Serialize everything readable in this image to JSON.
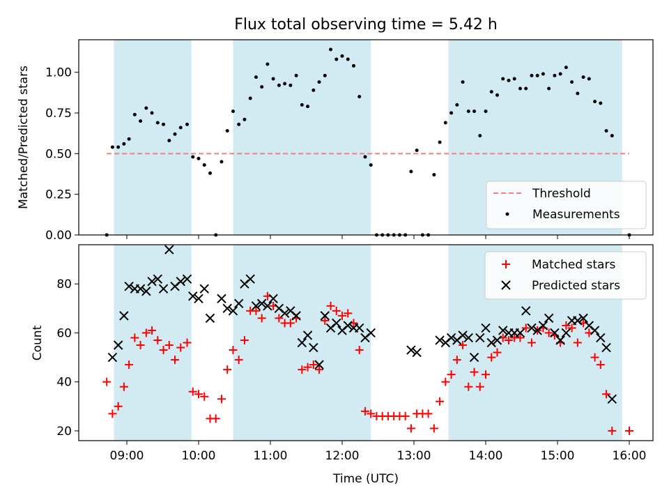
{
  "figure": {
    "title": "Flux total observing time = 5.42 h",
    "xlabel": "Time (UTC)",
    "x_ticks": [
      "09:00",
      "10:00",
      "11:00",
      "12:00",
      "13:00",
      "14:00",
      "15:00",
      "16:00"
    ],
    "x_tick_hours": [
      9,
      10,
      11,
      12,
      13,
      14,
      15,
      16
    ]
  },
  "chart_data": [
    {
      "type": "scatter",
      "panel": "top",
      "ylabel": "Matched/Predicted stars",
      "xlim": [
        8.33,
        16.33
      ],
      "ylim": [
        0,
        1.2
      ],
      "y_ticks": [
        "0.00",
        "0.25",
        "0.50",
        "0.75",
        "1.00"
      ],
      "y_tick_values": [
        0,
        0.25,
        0.5,
        0.75,
        1.0
      ],
      "legend_position": "lower-right",
      "shaded_intervals": [
        [
          8.82,
          9.9
        ],
        [
          10.48,
          12.4
        ],
        [
          13.48,
          15.9
        ]
      ],
      "threshold": {
        "name": "Threshold",
        "value": 0.5,
        "x_range": [
          8.72,
          16.0
        ],
        "color": "#f08080"
      },
      "series": [
        {
          "name": "Measurements",
          "color": "#000000",
          "marker": "dot",
          "points": [
            [
              8.72,
              0.0
            ],
            [
              8.8,
              0.54
            ],
            [
              8.88,
              0.54
            ],
            [
              8.96,
              0.56
            ],
            [
              9.03,
              0.59
            ],
            [
              9.11,
              0.74
            ],
            [
              9.19,
              0.7
            ],
            [
              9.27,
              0.78
            ],
            [
              9.35,
              0.75
            ],
            [
              9.43,
              0.69
            ],
            [
              9.51,
              0.68
            ],
            [
              9.59,
              0.58
            ],
            [
              9.67,
              0.62
            ],
            [
              9.75,
              0.66
            ],
            [
              9.84,
              0.68
            ],
            [
              9.92,
              0.48
            ],
            [
              10.0,
              0.47
            ],
            [
              10.08,
              0.43
            ],
            [
              10.16,
              0.38
            ],
            [
              10.24,
              0.0
            ],
            [
              10.32,
              0.45
            ],
            [
              10.4,
              0.64
            ],
            [
              10.48,
              0.76
            ],
            [
              10.56,
              0.68
            ],
            [
              10.64,
              0.71
            ],
            [
              10.72,
              0.84
            ],
            [
              10.8,
              0.97
            ],
            [
              10.88,
              0.91
            ],
            [
              10.96,
              1.05
            ],
            [
              11.04,
              0.96
            ],
            [
              11.12,
              0.92
            ],
            [
              11.2,
              0.93
            ],
            [
              11.28,
              0.92
            ],
            [
              11.36,
              0.98
            ],
            [
              11.44,
              0.8
            ],
            [
              11.52,
              0.79
            ],
            [
              11.6,
              0.89
            ],
            [
              11.68,
              0.94
            ],
            [
              11.76,
              0.98
            ],
            [
              11.84,
              1.14
            ],
            [
              11.92,
              1.08
            ],
            [
              12.0,
              1.1
            ],
            [
              12.08,
              1.08
            ],
            [
              12.16,
              1.04
            ],
            [
              12.24,
              0.85
            ],
            [
              12.32,
              0.48
            ],
            [
              12.4,
              0.43
            ],
            [
              12.48,
              0.0
            ],
            [
              12.56,
              0.0
            ],
            [
              12.64,
              0.0
            ],
            [
              12.72,
              0.0
            ],
            [
              12.8,
              0.0
            ],
            [
              12.88,
              0.0
            ],
            [
              12.96,
              0.39
            ],
            [
              13.04,
              0.52
            ],
            [
              13.12,
              0.0
            ],
            [
              13.2,
              0.0
            ],
            [
              13.28,
              0.37
            ],
            [
              13.36,
              0.57
            ],
            [
              13.44,
              0.69
            ],
            [
              13.52,
              0.75
            ],
            [
              13.6,
              0.8
            ],
            [
              13.68,
              0.94
            ],
            [
              13.76,
              0.76
            ],
            [
              13.84,
              0.76
            ],
            [
              13.92,
              0.61
            ],
            [
              14.0,
              0.76
            ],
            [
              14.08,
              0.88
            ],
            [
              14.16,
              0.86
            ],
            [
              14.24,
              0.96
            ],
            [
              14.32,
              0.95
            ],
            [
              14.4,
              0.96
            ],
            [
              14.48,
              0.9
            ],
            [
              14.56,
              0.9
            ],
            [
              14.64,
              0.98
            ],
            [
              14.72,
              0.98
            ],
            [
              14.8,
              0.99
            ],
            [
              14.88,
              0.9
            ],
            [
              14.96,
              0.98
            ],
            [
              15.04,
              0.99
            ],
            [
              15.12,
              1.03
            ],
            [
              15.2,
              0.94
            ],
            [
              15.28,
              0.87
            ],
            [
              15.36,
              0.97
            ],
            [
              15.44,
              0.96
            ],
            [
              15.52,
              0.82
            ],
            [
              15.6,
              0.81
            ],
            [
              15.68,
              0.64
            ],
            [
              15.76,
              0.61
            ],
            [
              16.0,
              0.0
            ]
          ]
        }
      ]
    },
    {
      "type": "scatter",
      "panel": "bottom",
      "ylabel": "Count",
      "xlim": [
        8.33,
        16.33
      ],
      "ylim": [
        16,
        96
      ],
      "y_ticks": [
        "20",
        "40",
        "60",
        "80"
      ],
      "y_tick_values": [
        20,
        40,
        60,
        80
      ],
      "legend_position": "upper-right",
      "shaded_intervals": [
        [
          8.82,
          9.9
        ],
        [
          10.48,
          12.4
        ],
        [
          13.48,
          15.9
        ]
      ],
      "series": [
        {
          "name": "Matched stars",
          "color": "#ff0000",
          "marker": "plus",
          "points": [
            [
              8.72,
              40
            ],
            [
              8.8,
              27
            ],
            [
              8.88,
              30
            ],
            [
              8.96,
              38
            ],
            [
              9.03,
              47
            ],
            [
              9.11,
              58
            ],
            [
              9.19,
              55
            ],
            [
              9.27,
              60
            ],
            [
              9.35,
              61
            ],
            [
              9.43,
              57
            ],
            [
              9.51,
              53
            ],
            [
              9.59,
              55
            ],
            [
              9.67,
              49
            ],
            [
              9.75,
              54
            ],
            [
              9.84,
              56
            ],
            [
              9.92,
              36
            ],
            [
              10.0,
              35
            ],
            [
              10.08,
              34
            ],
            [
              10.16,
              25
            ],
            [
              10.24,
              25
            ],
            [
              10.32,
              33
            ],
            [
              10.4,
              45
            ],
            [
              10.48,
              53
            ],
            [
              10.56,
              49
            ],
            [
              10.64,
              57
            ],
            [
              10.72,
              69
            ],
            [
              10.8,
              69
            ],
            [
              10.88,
              66
            ],
            [
              10.96,
              75
            ],
            [
              11.04,
              71
            ],
            [
              11.12,
              66
            ],
            [
              11.2,
              64
            ],
            [
              11.28,
              64
            ],
            [
              11.36,
              66
            ],
            [
              11.44,
              45
            ],
            [
              11.52,
              46
            ],
            [
              11.6,
              47
            ],
            [
              11.68,
              45
            ],
            [
              11.76,
              65
            ],
            [
              11.84,
              71
            ],
            [
              11.92,
              69
            ],
            [
              12.0,
              67
            ],
            [
              12.08,
              68
            ],
            [
              12.16,
              64
            ],
            [
              12.24,
              53
            ],
            [
              12.32,
              28
            ],
            [
              12.4,
              27
            ],
            [
              12.48,
              26
            ],
            [
              12.56,
              26
            ],
            [
              12.64,
              26
            ],
            [
              12.72,
              26
            ],
            [
              12.8,
              26
            ],
            [
              12.88,
              26
            ],
            [
              12.96,
              21
            ],
            [
              13.04,
              27
            ],
            [
              13.12,
              27
            ],
            [
              13.2,
              27
            ],
            [
              13.28,
              21
            ],
            [
              13.36,
              32
            ],
            [
              13.44,
              40
            ],
            [
              13.52,
              43
            ],
            [
              13.6,
              49
            ],
            [
              13.68,
              55
            ],
            [
              13.76,
              38
            ],
            [
              13.84,
              44
            ],
            [
              13.92,
              38
            ],
            [
              14.0,
              43
            ],
            [
              14.08,
              50
            ],
            [
              14.16,
              52
            ],
            [
              14.24,
              58
            ],
            [
              14.32,
              57
            ],
            [
              14.4,
              58
            ],
            [
              14.48,
              58
            ],
            [
              14.56,
              62
            ],
            [
              14.64,
              56
            ],
            [
              14.72,
              61
            ],
            [
              14.8,
              62
            ],
            [
              14.88,
              60
            ],
            [
              14.96,
              59
            ],
            [
              15.04,
              56
            ],
            [
              15.12,
              63
            ],
            [
              15.2,
              62
            ],
            [
              15.28,
              56
            ],
            [
              15.36,
              64
            ],
            [
              15.44,
              60
            ],
            [
              15.52,
              50
            ],
            [
              15.6,
              47
            ],
            [
              15.68,
              35
            ],
            [
              15.76,
              20
            ],
            [
              16.0,
              20
            ]
          ]
        },
        {
          "name": "Predicted stars",
          "color": "#000000",
          "marker": "x",
          "points": [
            [
              8.8,
              50
            ],
            [
              8.88,
              55
            ],
            [
              8.96,
              67
            ],
            [
              9.03,
              79
            ],
            [
              9.11,
              78
            ],
            [
              9.19,
              78
            ],
            [
              9.27,
              77
            ],
            [
              9.35,
              81
            ],
            [
              9.43,
              82
            ],
            [
              9.51,
              78
            ],
            [
              9.59,
              94
            ],
            [
              9.67,
              79
            ],
            [
              9.75,
              81
            ],
            [
              9.84,
              82
            ],
            [
              9.92,
              75
            ],
            [
              10.0,
              74
            ],
            [
              10.08,
              78
            ],
            [
              10.16,
              66
            ],
            [
              10.32,
              74
            ],
            [
              10.4,
              70
            ],
            [
              10.48,
              69
            ],
            [
              10.56,
              72
            ],
            [
              10.64,
              80
            ],
            [
              10.72,
              82
            ],
            [
              10.8,
              71
            ],
            [
              10.88,
              72
            ],
            [
              10.96,
              71
            ],
            [
              11.04,
              74
            ],
            [
              11.12,
              70
            ],
            [
              11.2,
              68
            ],
            [
              11.28,
              69
            ],
            [
              11.36,
              67
            ],
            [
              11.44,
              56
            ],
            [
              11.52,
              59
            ],
            [
              11.6,
              54
            ],
            [
              11.68,
              47
            ],
            [
              11.76,
              67
            ],
            [
              11.84,
              62
            ],
            [
              11.92,
              64
            ],
            [
              12.0,
              61
            ],
            [
              12.08,
              63
            ],
            [
              12.16,
              62
            ],
            [
              12.24,
              62
            ],
            [
              12.32,
              58
            ],
            [
              12.4,
              60
            ],
            [
              12.96,
              53
            ],
            [
              13.04,
              52
            ],
            [
              13.36,
              57
            ],
            [
              13.44,
              56
            ],
            [
              13.52,
              58
            ],
            [
              13.6,
              57
            ],
            [
              13.68,
              59
            ],
            [
              13.76,
              58
            ],
            [
              13.84,
              50
            ],
            [
              13.92,
              58
            ],
            [
              14.0,
              62
            ],
            [
              14.08,
              56
            ],
            [
              14.16,
              57
            ],
            [
              14.24,
              61
            ],
            [
              14.32,
              60
            ],
            [
              14.4,
              60
            ],
            [
              14.48,
              60
            ],
            [
              14.56,
              69
            ],
            [
              14.64,
              62
            ],
            [
              14.72,
              61
            ],
            [
              14.8,
              63
            ],
            [
              14.88,
              66
            ],
            [
              14.96,
              60
            ],
            [
              15.04,
              57
            ],
            [
              15.12,
              60
            ],
            [
              15.2,
              65
            ],
            [
              15.28,
              65
            ],
            [
              15.36,
              66
            ],
            [
              15.44,
              63
            ],
            [
              15.52,
              61
            ],
            [
              15.6,
              58
            ],
            [
              15.68,
              54
            ],
            [
              15.76,
              33
            ]
          ]
        }
      ]
    }
  ],
  "styles": {
    "shade_color": "#add8e6",
    "background": "#ffffff",
    "axis_color": "#000000"
  }
}
